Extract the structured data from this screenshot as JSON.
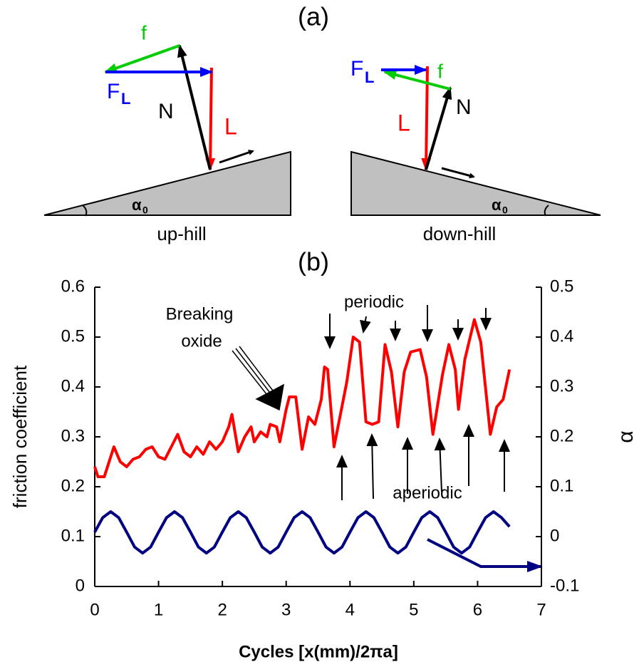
{
  "diagram": {
    "panel_label": "(a)",
    "uphill": {
      "f": "f",
      "F": "F",
      "F_sub": "L",
      "N": "N",
      "L": "L",
      "alpha": "α",
      "alpha_sub": "0",
      "caption": "up-hill"
    },
    "downhill": {
      "f": "f",
      "F": "F",
      "F_sub": "L",
      "N": "N",
      "L": "L",
      "alpha": "α",
      "alpha_sub": "0",
      "caption": "down-hill"
    }
  },
  "chart_data": {
    "type": "line",
    "panel_label": "(b)",
    "xlabel": "Cycles [x(mm)/2πa]",
    "ylabel": "friction coefficient",
    "y2label": "α",
    "xlim": [
      0,
      7
    ],
    "xticks": [
      0,
      1,
      2,
      3,
      4,
      5,
      6,
      7
    ],
    "ylim": [
      0,
      0.6
    ],
    "yticks": [
      0,
      0.1,
      0.2,
      0.3,
      0.4,
      0.5,
      0.6
    ],
    "y2lim": [
      -0.1,
      0.5
    ],
    "y2ticks": [
      -0.1,
      0,
      0.1,
      0.2,
      0.3,
      0.4,
      0.5
    ],
    "annotations": [
      "Breaking",
      "oxide",
      "periodic",
      "aperiodic"
    ],
    "series": [
      {
        "color": "#ff0000",
        "x": [
          0,
          0.05,
          0.15,
          0.25,
          0.3,
          0.4,
          0.5,
          0.6,
          0.7,
          0.8,
          0.9,
          1.0,
          1.1,
          1.2,
          1.3,
          1.4,
          1.5,
          1.6,
          1.7,
          1.8,
          1.9,
          2.0,
          2.1,
          2.15,
          2.25,
          2.35,
          2.45,
          2.5,
          2.6,
          2.7,
          2.75,
          2.85,
          2.9,
          3.0,
          3.05,
          3.15,
          3.25,
          3.35,
          3.45,
          3.55,
          3.6,
          3.65,
          3.75,
          3.85,
          3.95,
          4.05,
          4.15,
          4.25,
          4.35,
          4.45,
          4.55,
          4.65,
          4.75,
          4.85,
          4.95,
          5.1,
          5.2,
          5.3,
          5.45,
          5.55,
          5.65,
          5.7,
          5.8,
          5.95,
          6.05,
          6.2,
          6.3,
          6.4,
          6.5
        ],
        "values": [
          0.24,
          0.22,
          0.22,
          0.26,
          0.28,
          0.25,
          0.24,
          0.255,
          0.26,
          0.275,
          0.28,
          0.26,
          0.255,
          0.28,
          0.305,
          0.27,
          0.26,
          0.28,
          0.265,
          0.29,
          0.275,
          0.29,
          0.32,
          0.345,
          0.27,
          0.3,
          0.32,
          0.29,
          0.31,
          0.3,
          0.325,
          0.32,
          0.29,
          0.355,
          0.38,
          0.38,
          0.275,
          0.34,
          0.325,
          0.375,
          0.44,
          0.435,
          0.28,
          0.345,
          0.41,
          0.5,
          0.49,
          0.33,
          0.325,
          0.33,
          0.485,
          0.43,
          0.32,
          0.43,
          0.47,
          0.475,
          0.42,
          0.305,
          0.425,
          0.485,
          0.435,
          0.355,
          0.455,
          0.535,
          0.49,
          0.305,
          0.36,
          0.375,
          0.435
        ]
      },
      {
        "color": "#000080",
        "axis": "y2",
        "x": [
          0,
          0.125,
          0.25,
          0.375,
          0.5,
          0.625,
          0.75,
          0.875,
          1,
          1.125,
          1.25,
          1.375,
          1.5,
          1.625,
          1.75,
          1.875,
          2,
          2.125,
          2.25,
          2.375,
          2.5,
          2.625,
          2.75,
          2.875,
          3,
          3.125,
          3.25,
          3.375,
          3.5,
          3.625,
          3.75,
          3.875,
          4,
          4.125,
          4.25,
          4.375,
          4.5,
          4.625,
          4.75,
          4.875,
          5,
          5.125,
          5.25,
          5.375,
          5.5,
          5.625,
          5.75,
          5.875,
          6,
          6.125,
          6.25,
          6.375,
          6.5
        ],
        "values": [
          0.009,
          0.038,
          0.05,
          0.038,
          0.009,
          -0.021,
          -0.033,
          -0.021,
          0.009,
          0.038,
          0.05,
          0.038,
          0.009,
          -0.021,
          -0.033,
          -0.021,
          0.009,
          0.038,
          0.05,
          0.038,
          0.009,
          -0.021,
          -0.033,
          -0.021,
          0.009,
          0.038,
          0.05,
          0.038,
          0.009,
          -0.021,
          -0.033,
          -0.021,
          0.009,
          0.038,
          0.05,
          0.038,
          0.009,
          -0.021,
          -0.033,
          -0.021,
          0.009,
          0.038,
          0.05,
          0.038,
          0.009,
          -0.021,
          -0.033,
          -0.021,
          0.009,
          0.038,
          0.05,
          0.038,
          0.02
        ]
      }
    ]
  }
}
